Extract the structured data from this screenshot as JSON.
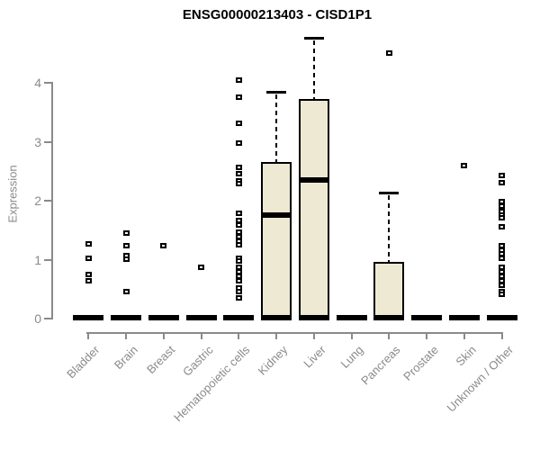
{
  "chart_data": {
    "type": "boxplot",
    "title": "ENSG00000213403 - CISD1P1",
    "xlabel": "",
    "ylabel": "Expression",
    "ylim": [
      0,
      4.9
    ],
    "y_ticks": [
      0,
      1,
      2,
      3,
      4
    ],
    "grid": false,
    "legend": "none",
    "categories": [
      "Bladder",
      "Brain",
      "Breast",
      "Gastric",
      "Hematopoietic cells",
      "Kidney",
      "Liver",
      "Lung",
      "Pancreas",
      "Prostate",
      "Skin",
      "Unknown / Other"
    ],
    "series": [
      {
        "name": "Bladder",
        "q1": 0,
        "median": 0,
        "q3": 0,
        "whisker_low": 0,
        "whisker_high": 0,
        "outliers": [
          1.26,
          1.01,
          0.73,
          0.63
        ]
      },
      {
        "name": "Brain",
        "q1": 0,
        "median": 0,
        "q3": 0,
        "whisker_low": 0,
        "whisker_high": 0,
        "outliers": [
          1.43,
          1.22,
          1.05,
          0.99,
          0.45
        ]
      },
      {
        "name": "Breast",
        "q1": 0,
        "median": 0,
        "q3": 0,
        "whisker_low": 0,
        "whisker_high": 0,
        "outliers": [
          1.23
        ]
      },
      {
        "name": "Gastric",
        "q1": 0,
        "median": 0,
        "q3": 0,
        "whisker_low": 0,
        "whisker_high": 0,
        "outliers": [
          0.85
        ]
      },
      {
        "name": "Hematopoietic cells",
        "q1": 0,
        "median": 0,
        "q3": 0,
        "whisker_low": 0,
        "whisker_high": 0,
        "outliers": [
          4.04,
          3.74,
          3.3,
          2.97,
          2.56,
          2.44,
          2.33,
          2.28,
          1.78,
          1.65,
          1.58,
          1.46,
          1.38,
          1.3,
          1.24,
          1.01,
          0.96,
          0.86,
          0.78,
          0.7,
          0.62,
          0.5,
          0.45,
          0.33
        ]
      },
      {
        "name": "Kidney",
        "q1": 0,
        "median": 1.74,
        "q3": 2.65,
        "whisker_low": 0,
        "whisker_high": 3.84,
        "outliers": []
      },
      {
        "name": "Liver",
        "q1": 0,
        "median": 2.34,
        "q3": 3.71,
        "whisker_low": 0,
        "whisker_high": 4.76,
        "outliers": []
      },
      {
        "name": "Lung",
        "q1": 0,
        "median": 0,
        "q3": 0,
        "whisker_low": 0,
        "whisker_high": 0,
        "outliers": []
      },
      {
        "name": "Pancreas",
        "q1": 0,
        "median": 0,
        "q3": 0.95,
        "whisker_low": 0,
        "whisker_high": 2.13,
        "outliers": [
          4.5
        ]
      },
      {
        "name": "Prostate",
        "q1": 0,
        "median": 0,
        "q3": 0,
        "whisker_low": 0,
        "whisker_high": 0,
        "outliers": []
      },
      {
        "name": "Skin",
        "q1": 0,
        "median": 0,
        "q3": 0,
        "whisker_low": 0,
        "whisker_high": 0,
        "outliers": [
          2.59
        ]
      },
      {
        "name": "Unknown / Other",
        "q1": 0,
        "median": 0,
        "q3": 0,
        "whisker_low": 0,
        "whisker_high": 0,
        "outliers": [
          2.41,
          2.3,
          1.97,
          1.9,
          1.8,
          1.75,
          1.7,
          1.55,
          1.22,
          1.15,
          1.08,
          1.01,
          0.86,
          0.78,
          0.7,
          0.63,
          0.55,
          0.45,
          0.4
        ]
      }
    ],
    "colors": {
      "box_fill": "#EEE9D2",
      "box_border": "#000000",
      "median": "#000000",
      "outlier": "#000000",
      "axis": "#8A8A8A",
      "tick_label": "#8A8A8A",
      "title": "#000000",
      "background": "#FFFFFF"
    }
  }
}
